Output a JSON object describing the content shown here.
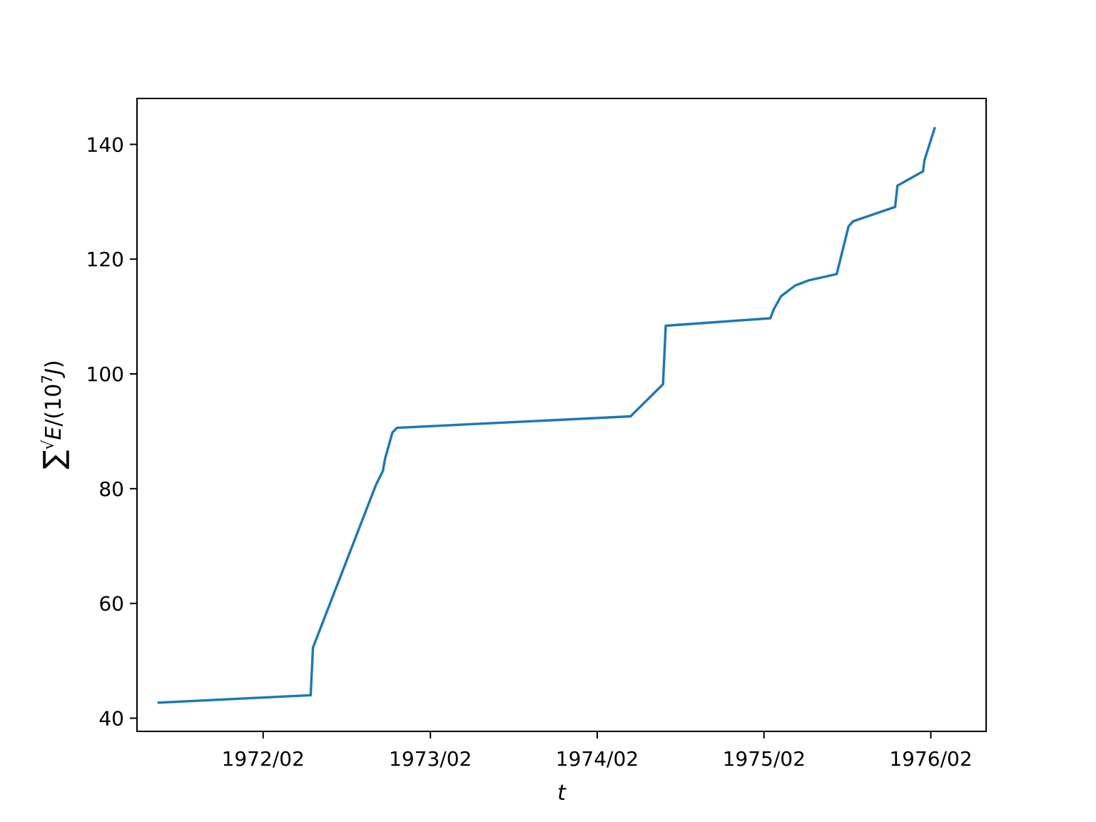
{
  "chart_data": {
    "type": "line",
    "title": "",
    "xlabel": "t",
    "ylabel": "∑√E/(10^7J)",
    "x_tick_labels": [
      "1972/02",
      "1973/02",
      "1974/02",
      "1975/02",
      "1976/02"
    ],
    "x_ticks": [
      "1972-02-01",
      "1973-02-01",
      "1974-02-01",
      "1975-02-01",
      "1976-02-01"
    ],
    "xlim": [
      "1971-05-01",
      "1976-06-01"
    ],
    "y_ticks": [
      40,
      60,
      80,
      100,
      120,
      140
    ],
    "ylim": [
      37.7,
      148
    ],
    "grid": false,
    "series": [
      {
        "color": "#1f77b4",
        "x": [
          "1971-06-15",
          "1972-05-15",
          "1972-05-20",
          "1972-10-05",
          "1972-10-20",
          "1972-10-25",
          "1972-11-10",
          "1972-11-20",
          "1974-04-15",
          "1974-06-25",
          "1974-07-01",
          "1975-02-15",
          "1975-02-22",
          "1975-03-10",
          "1975-04-10",
          "1975-05-10",
          "1975-07-10",
          "1975-08-05",
          "1975-08-15",
          "1975-11-15",
          "1975-11-20",
          "1976-01-15",
          "1976-01-18",
          "1976-02-10"
        ],
        "y": [
          42.7,
          44.0,
          52.3,
          80.7,
          83.1,
          85.3,
          89.8,
          90.6,
          92.6,
          98.2,
          108.4,
          109.7,
          111.2,
          113.5,
          115.4,
          116.3,
          117.4,
          125.7,
          126.6,
          129.1,
          132.8,
          135.3,
          137.2,
          143.0
        ]
      }
    ]
  }
}
